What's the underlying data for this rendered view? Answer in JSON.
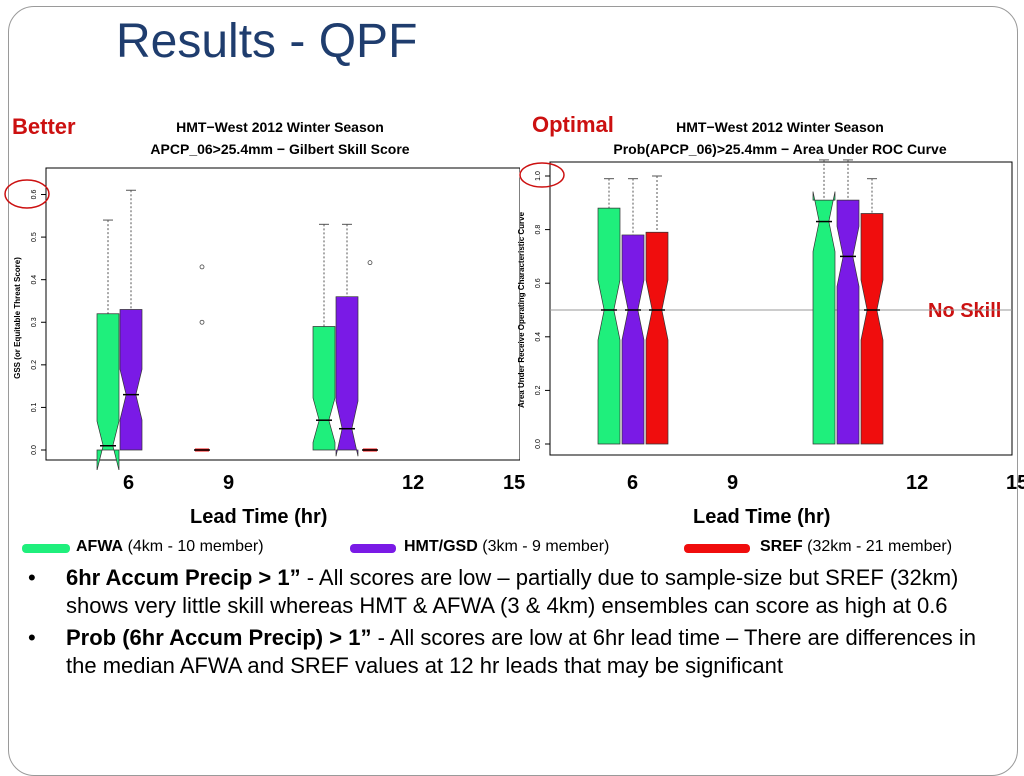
{
  "slide": {
    "title": "Results - QPF",
    "callout_better": "Better",
    "callout_optimal": "Optimal",
    "callout_noskill": "No Skill"
  },
  "legend": [
    {
      "name": "AFWA",
      "desc": "(4km - 10 member)",
      "color": "#1fef7c"
    },
    {
      "name": "HMT/GSD",
      "desc": "(3km - 9 member)",
      "color": "#7a1ae6"
    },
    {
      "name": "SREF",
      "desc": "(32km - 21 member)",
      "color": "#f00d0d"
    }
  ],
  "xaxis": {
    "label": "Lead Time (hr)",
    "ticks": [
      "6",
      "9",
      "12",
      "15"
    ]
  },
  "bullets": [
    {
      "bold": "6hr Accum Precip > 1”",
      "text": " - All scores are low – partially due to sample-size but SREF (32km) shows very little skill whereas HMT & AFWA (3 & 4km) ensembles can score as high at 0.6"
    },
    {
      "bold": "Prob (6hr Accum Precip) > 1”",
      "text": "  - All scores are low at 6hr lead time – There are differences in the median AFWA and SREF values at 12 hr leads that may be significant"
    }
  ],
  "chart_data": [
    {
      "type": "box",
      "title": "HMT−West 2012 Winter Season",
      "subtitle": "APCP_06>25.4mm − Gilbert Skill Score",
      "ylabel": "GSS (or Equitable Threat Score)",
      "ylim": [
        0,
        0.62
      ],
      "yticks": [
        "0.0",
        "0.1",
        "0.2",
        "0.3",
        "0.4",
        "0.5",
        "0.6"
      ],
      "boxes": [
        {
          "series": "AFWA",
          "lead": 6,
          "min": 0.0,
          "q1": 0.0,
          "median": 0.01,
          "q3": 0.32,
          "max": 0.54
        },
        {
          "series": "HMT/GSD",
          "lead": 6,
          "min": 0.0,
          "q1": 0.0,
          "median": 0.13,
          "q3": 0.33,
          "max": 0.61
        },
        {
          "series": "SREF",
          "lead": 6,
          "min": 0.0,
          "q1": 0.0,
          "median": 0.0,
          "q3": 0.0,
          "max": 0.0,
          "outliers": [
            0.43,
            0.3
          ]
        },
        {
          "series": "AFWA",
          "lead": 12,
          "min": 0.0,
          "q1": 0.0,
          "median": 0.07,
          "q3": 0.29,
          "max": 0.53
        },
        {
          "series": "HMT/GSD",
          "lead": 12,
          "min": 0.0,
          "q1": 0.0,
          "median": 0.05,
          "q3": 0.36,
          "max": 0.53
        },
        {
          "series": "SREF",
          "lead": 12,
          "min": 0.0,
          "q1": 0.0,
          "median": 0.0,
          "q3": 0.0,
          "max": 0.0,
          "outliers": [
            0.44
          ]
        }
      ]
    },
    {
      "type": "box",
      "title": "HMT−West 2012 Winter Season",
      "subtitle": "Prob(APCP_06)>25.4mm − Area Under ROC Curve",
      "ylabel": "Area Under Receive Operating Characteristic Curve",
      "ylim": [
        0,
        1.0
      ],
      "yticks": [
        "0.0",
        "0.2",
        "0.4",
        "0.6",
        "0.8",
        "1.0"
      ],
      "reference_line": 0.5,
      "boxes": [
        {
          "series": "AFWA",
          "lead": 6,
          "min": 0.0,
          "q1": 0.0,
          "median": 0.5,
          "q3": 0.88,
          "max": 0.99
        },
        {
          "series": "HMT/GSD",
          "lead": 6,
          "min": 0.0,
          "q1": 0.0,
          "median": 0.5,
          "q3": 0.78,
          "max": 0.99
        },
        {
          "series": "SREF",
          "lead": 6,
          "min": 0.0,
          "q1": 0.0,
          "median": 0.5,
          "q3": 0.79,
          "max": 1.0
        },
        {
          "series": "AFWA",
          "lead": 12,
          "min": 0.0,
          "q1": 0.0,
          "median": 0.83,
          "q3": 0.91,
          "max": 1.06
        },
        {
          "series": "HMT/GSD",
          "lead": 12,
          "min": 0.0,
          "q1": 0.0,
          "median": 0.7,
          "q3": 0.91,
          "max": 1.06
        },
        {
          "series": "SREF",
          "lead": 12,
          "min": 0.0,
          "q1": 0.0,
          "median": 0.5,
          "q3": 0.86,
          "max": 0.99
        }
      ]
    }
  ]
}
